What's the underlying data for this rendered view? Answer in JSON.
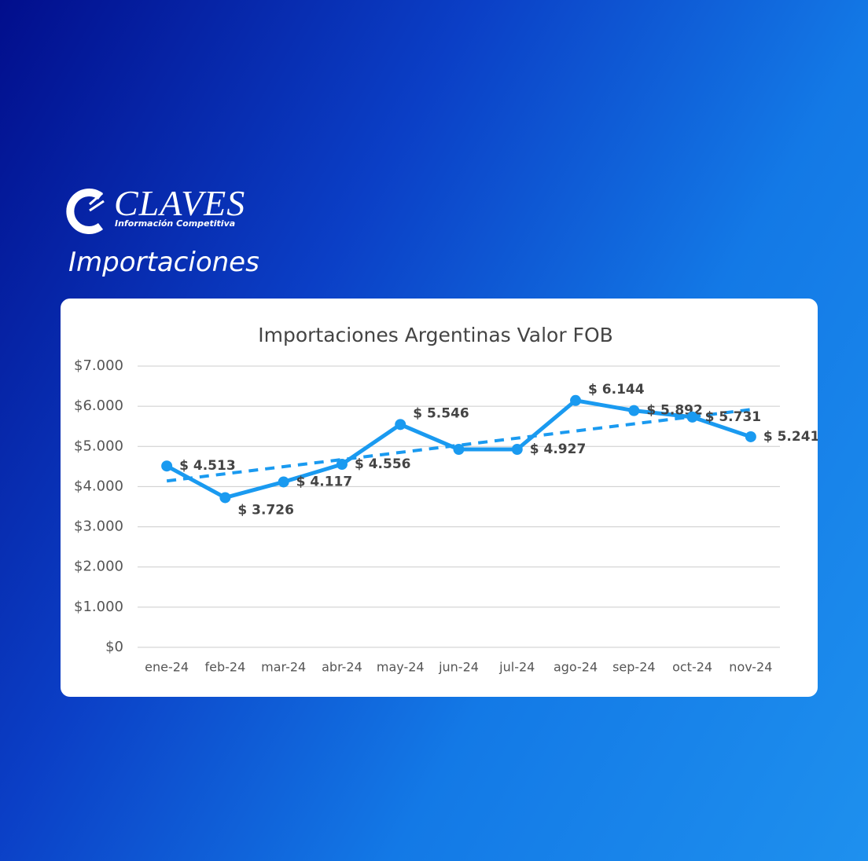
{
  "header": {
    "brand": "CLAVES",
    "tagline": "Información Competitiva",
    "title": "Importaciones"
  },
  "chart_data": {
    "type": "line",
    "title": "Importaciones Argentinas Valor FOB",
    "categories": [
      "ene-24",
      "feb-24",
      "mar-24",
      "abr-24",
      "may-24",
      "jun-24",
      "jul-24",
      "ago-24",
      "sep-24",
      "oct-24",
      "nov-24"
    ],
    "values": [
      4513,
      3726,
      4117,
      4556,
      5546,
      4927,
      4927,
      6144,
      5892,
      5731,
      5241
    ],
    "value_labels": [
      "$ 4.513",
      "$ 3.726",
      "$ 4.117",
      "$ 4.556",
      "$ 5.546",
      null,
      "$ 4.927",
      "$ 6.144",
      "$ 5.892",
      "$ 5.731",
      "$ 5.241"
    ],
    "color": "#1a9af0",
    "trendline": true,
    "grid": true,
    "ylim": [
      0,
      7000
    ],
    "yticks": [
      {
        "value": 0,
        "label": "$0"
      },
      {
        "value": 1000,
        "label": "$1.000"
      },
      {
        "value": 2000,
        "label": "$2.000"
      },
      {
        "value": 3000,
        "label": "$3.000"
      },
      {
        "value": 4000,
        "label": "$4.000"
      },
      {
        "value": 5000,
        "label": "$5.000"
      },
      {
        "value": 6000,
        "label": "$6.000"
      },
      {
        "value": 7000,
        "label": "$7.000"
      }
    ]
  }
}
